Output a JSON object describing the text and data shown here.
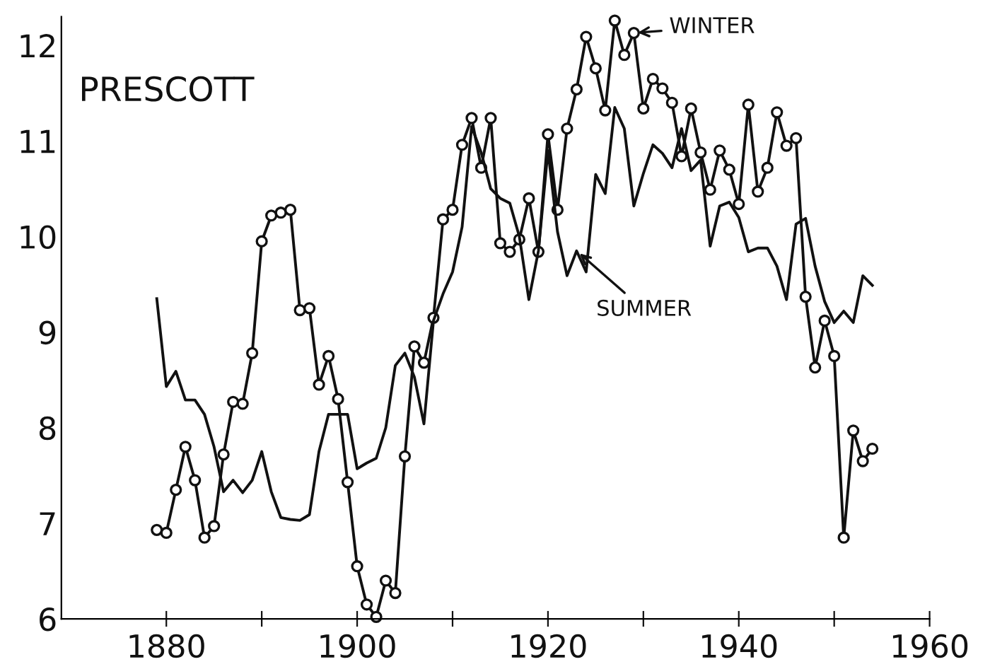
{
  "chart_data": {
    "type": "line",
    "title": "PRESCOTT",
    "x": [
      1879,
      1880,
      1881,
      1882,
      1883,
      1884,
      1885,
      1886,
      1887,
      1888,
      1889,
      1890,
      1891,
      1892,
      1893,
      1894,
      1895,
      1896,
      1897,
      1898,
      1899,
      1900,
      1901,
      1902,
      1903,
      1904,
      1905,
      1906,
      1907,
      1908,
      1909,
      1910,
      1911,
      1912,
      1913,
      1914,
      1915,
      1916,
      1917,
      1918,
      1919,
      1920,
      1921,
      1922,
      1923,
      1924,
      1925,
      1926,
      1927,
      1928,
      1929,
      1930,
      1931,
      1932,
      1933,
      1934,
      1935,
      1936,
      1937,
      1938,
      1939,
      1940,
      1941,
      1942,
      1943,
      1944,
      1945,
      1946,
      1947,
      1948,
      1949,
      1950,
      1951,
      1952,
      1953,
      1954
    ],
    "series": [
      {
        "color": "#111111",
        "marker": "circle",
        "values": [
          6.93,
          6.9,
          7.35,
          7.8,
          7.45,
          6.85,
          6.97,
          7.72,
          8.27,
          8.25,
          8.78,
          9.95,
          10.22,
          10.25,
          10.28,
          9.23,
          9.25,
          8.45,
          8.75,
          8.3,
          7.43,
          6.55,
          6.15,
          6.02,
          6.4,
          6.27,
          7.7,
          8.85,
          8.68,
          9.15,
          10.18,
          10.28,
          10.96,
          11.24,
          10.72,
          11.24,
          9.93,
          9.84,
          9.97,
          10.4,
          9.84,
          11.07,
          10.28,
          11.13,
          11.54,
          12.09,
          11.76,
          11.32,
          12.26,
          11.9,
          12.13,
          11.34,
          11.65,
          11.55,
          11.4,
          10.84,
          11.34,
          10.88,
          10.49,
          10.9,
          10.7,
          10.34,
          11.38,
          10.47,
          10.72,
          11.3,
          10.95,
          11.03,
          9.37,
          8.63,
          9.12,
          8.75,
          6.85,
          7.97,
          7.65,
          7.78
        ]
      },
      {
        "color": "#111111",
        "marker": "none",
        "values": [
          9.35,
          8.43,
          8.59,
          8.29,
          8.29,
          8.14,
          7.8,
          7.33,
          7.45,
          7.32,
          7.45,
          7.75,
          7.33,
          7.06,
          7.04,
          7.03,
          7.09,
          7.75,
          8.14,
          8.14,
          8.14,
          7.57,
          7.63,
          7.68,
          8.0,
          8.65,
          8.78,
          8.53,
          8.04,
          9.12,
          9.4,
          9.63,
          10.1,
          11.15,
          10.88,
          10.5,
          10.4,
          10.35,
          10.0,
          9.34,
          9.85,
          10.9,
          10.05,
          9.59,
          9.85,
          9.63,
          10.65,
          10.45,
          11.35,
          11.13,
          10.32,
          10.66,
          10.96,
          10.87,
          10.72,
          11.13,
          10.69,
          10.8,
          9.9,
          10.32,
          10.36,
          10.2,
          9.84,
          9.88,
          9.88,
          9.69,
          9.34,
          10.13,
          10.19,
          9.69,
          9.32,
          9.1,
          9.22,
          9.1,
          9.59,
          9.49
        ]
      }
    ],
    "annotations": [
      {
        "text": "WINTER",
        "x": 1929,
        "y": 12.13
      },
      {
        "text": "SUMMER",
        "x": 1923,
        "y": 9.85
      }
    ],
    "xlim": [
      1869,
      1960
    ],
    "ylim": [
      6,
      12.3
    ],
    "xticks": [
      1880,
      {
        "value": 1890,
        "label": null
      },
      1900,
      {
        "value": 1910,
        "label": null
      },
      1920,
      {
        "value": 1930,
        "label": null
      },
      1940,
      {
        "value": 1950,
        "label": null
      },
      1960
    ],
    "yticks": [
      6,
      7,
      8,
      9,
      10,
      11,
      12
    ],
    "grid": false,
    "legend": false
  }
}
